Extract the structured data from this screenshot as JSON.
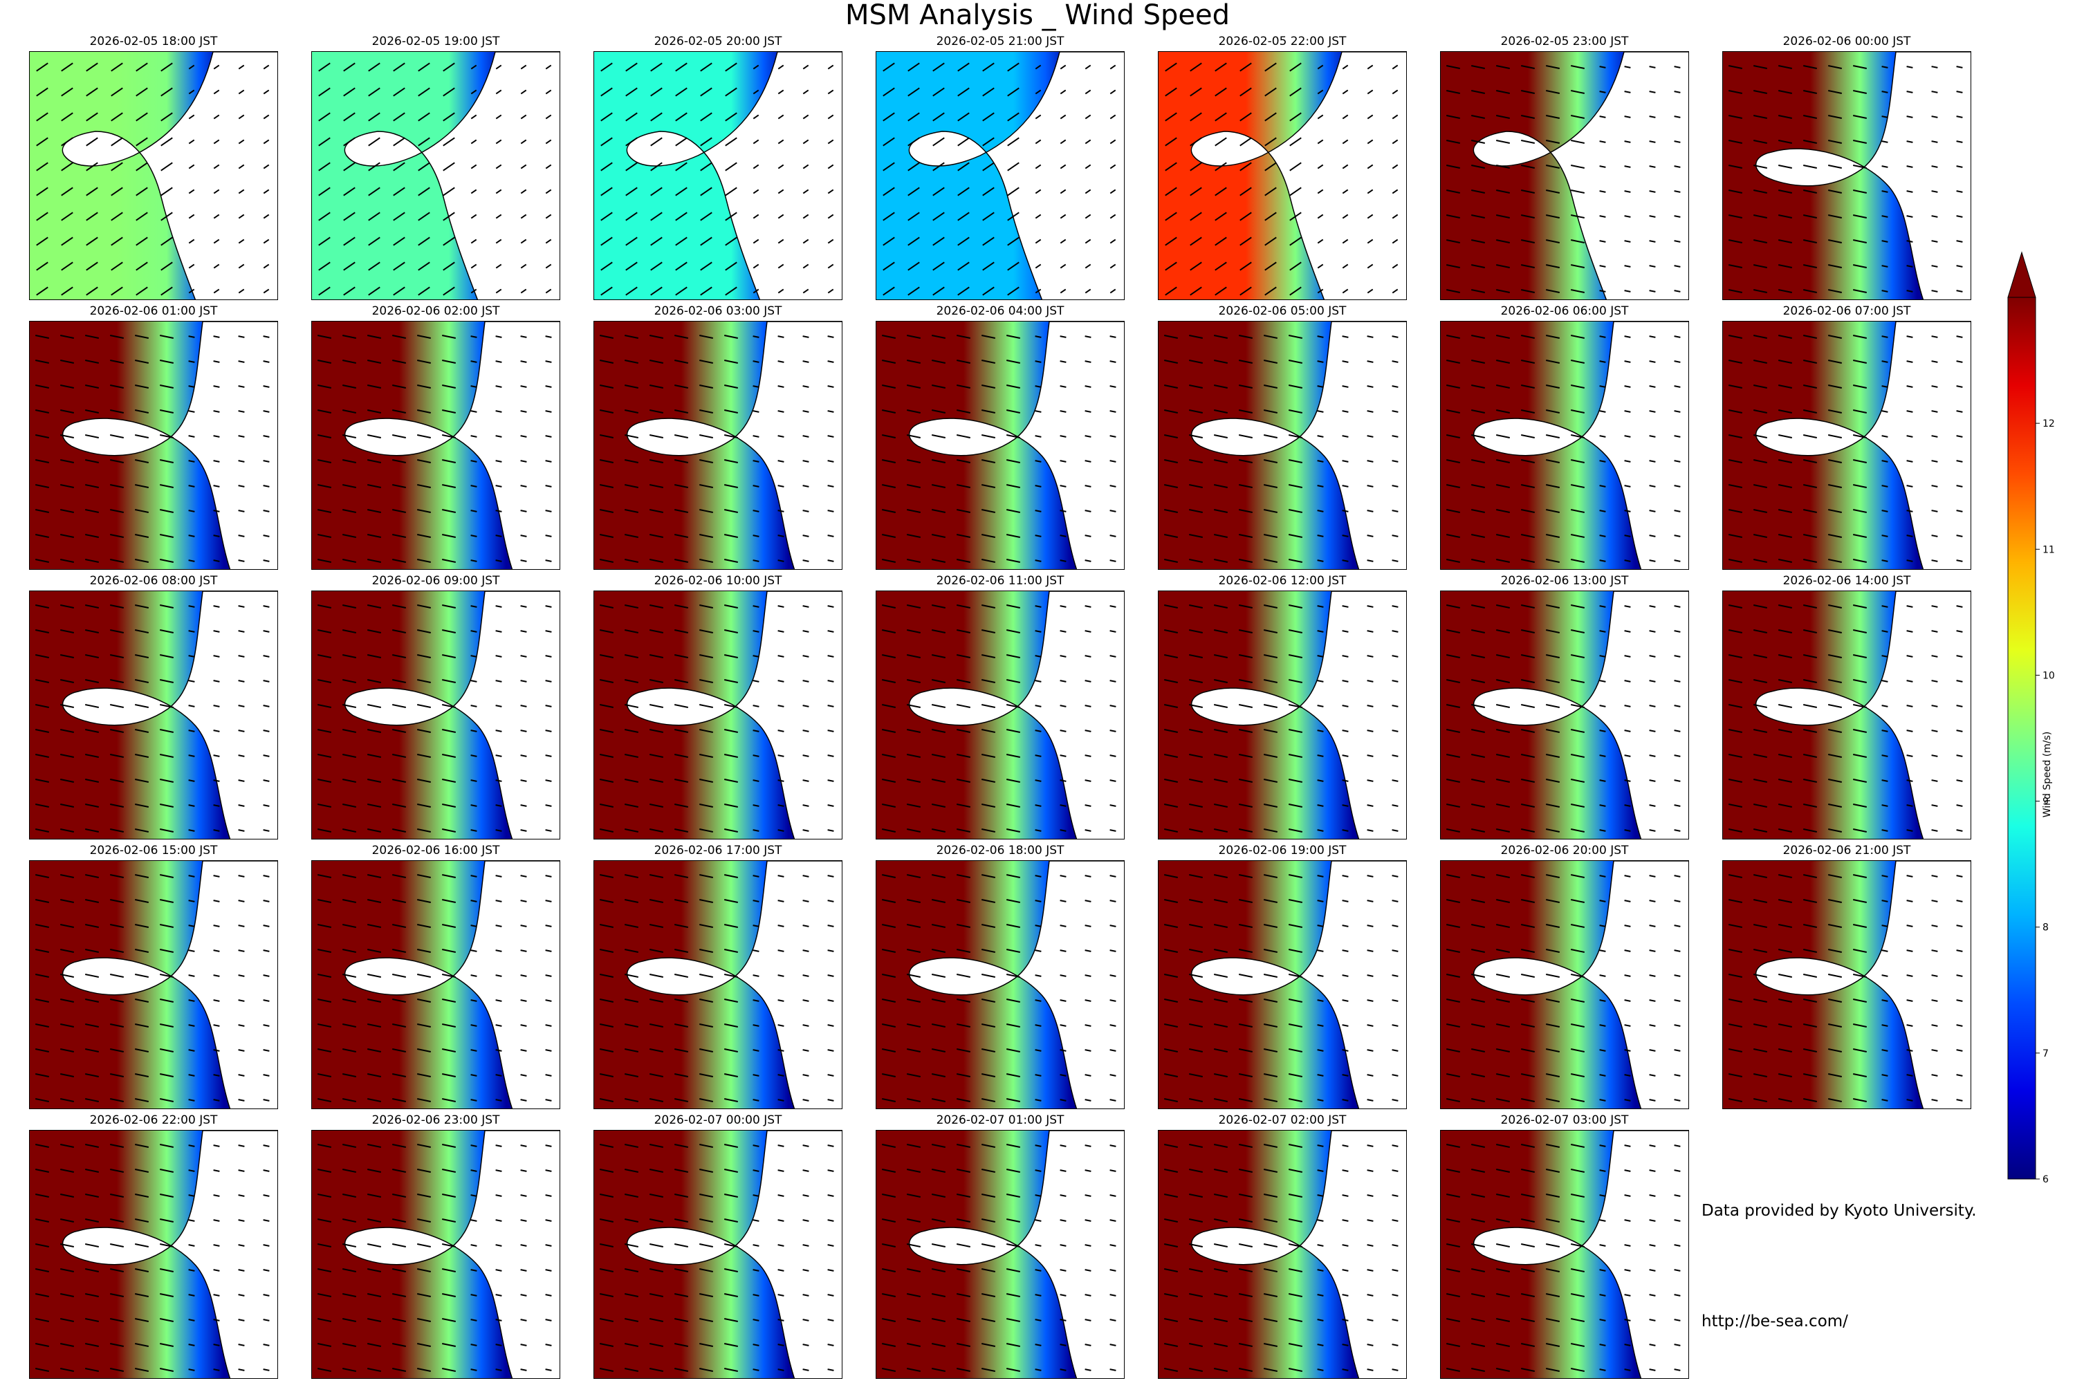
{
  "title": "MSM Analysis _ Wind Speed",
  "chart_data": {
    "type": "heatmap",
    "title": "MSM Analysis _ Wind Speed",
    "panel_titles": [
      "2026-02-05 18:00 JST",
      "2026-02-05 19:00 JST",
      "2026-02-05 20:00 JST",
      "2026-02-05 21:00 JST",
      "2026-02-05 22:00 JST",
      "2026-02-05 23:00 JST",
      "2026-02-06 00:00 JST",
      "2026-02-06 01:00 JST",
      "2026-02-06 02:00 JST",
      "2026-02-06 03:00 JST",
      "2026-02-06 04:00 JST",
      "2026-02-06 05:00 JST",
      "2026-02-06 06:00 JST",
      "2026-02-06 07:00 JST",
      "2026-02-06 08:00 JST",
      "2026-02-06 09:00 JST",
      "2026-02-06 10:00 JST",
      "2026-02-06 11:00 JST",
      "2026-02-06 12:00 JST",
      "2026-02-06 13:00 JST",
      "2026-02-06 14:00 JST",
      "2026-02-06 15:00 JST",
      "2026-02-06 16:00 JST",
      "2026-02-06 17:00 JST",
      "2026-02-06 18:00 JST",
      "2026-02-06 19:00 JST",
      "2026-02-06 20:00 JST",
      "2026-02-06 21:00 JST",
      "2026-02-06 22:00 JST",
      "2026-02-06 23:00 JST",
      "2026-02-07 00:00 JST",
      "2026-02-07 01:00 JST",
      "2026-02-07 02:00 JST",
      "2026-02-07 03:00 JST"
    ],
    "sea_wind_speed_ms": [
      9.6,
      9.2,
      8.9,
      8.2,
      11.8,
      13.2,
      13.2,
      13.2,
      13.2,
      13.2,
      13.2,
      13.2,
      13.2,
      13.2,
      13.2,
      13.2,
      13.2,
      13.2,
      13.2,
      13.2,
      13.2,
      13.2,
      13.2,
      13.2,
      13.2,
      13.2,
      13.2,
      13.2,
      13.2,
      13.2,
      13.2,
      13.2,
      13.2,
      13.2
    ],
    "colorbar": {
      "label": "Wind Speed (m/s)",
      "range": [
        6,
        13
      ],
      "ticks": [
        "6",
        "7",
        "8",
        "9",
        "10",
        "11",
        "12"
      ],
      "colormap": "jet",
      "extend": "max"
    },
    "colors": {
      "low": "#00008f",
      "high": "#800000",
      "land": "#ffffff",
      "coast": "#000000",
      "arrow": "#000000"
    }
  },
  "notes": {
    "credit": "Data provided by Kyoto University.",
    "url": "http://be-sea.com/"
  }
}
